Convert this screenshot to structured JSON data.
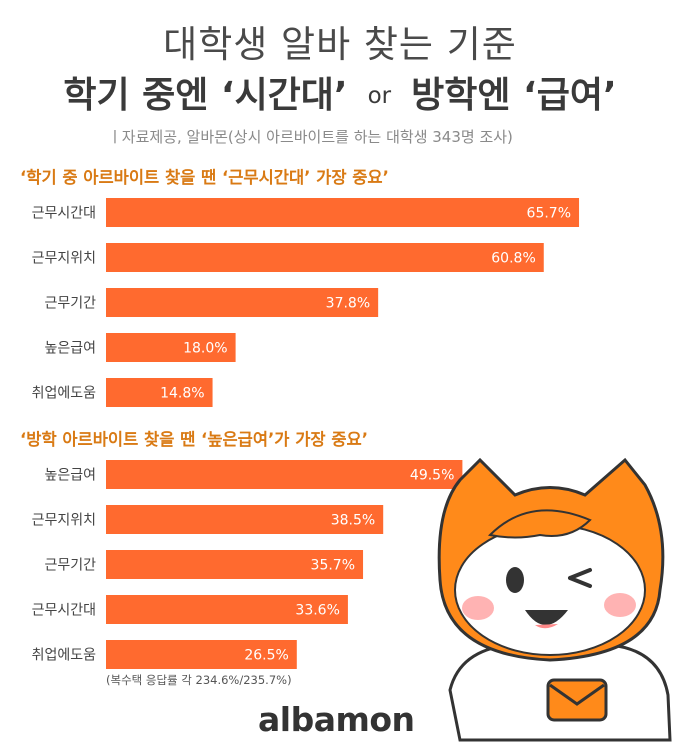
{
  "header": {
    "title_line1": "대학생 알바 찾는 기준",
    "title_line2_left": "학기 중엔 ‘시간대’",
    "title_line2_or": "or",
    "title_line2_right": "방학엔 ‘급여’",
    "source": "ㅣ자료제공, 알바몬(상시 아르바이트를 하는 대학생 343명 조사)"
  },
  "chart_data": [
    {
      "type": "bar",
      "orientation": "horizontal",
      "title": "‘학기 중 아르바이트 찾을 땐 ‘근무시간대’ 가장 중요’",
      "categories": [
        "근무시간대",
        "근무지위치",
        "근무기간",
        "높은급여",
        "취업에도움"
      ],
      "values": [
        65.7,
        60.8,
        37.8,
        18.0,
        14.8
      ],
      "value_labels": [
        "65.7%",
        "60.8%",
        "37.8%",
        "18.0%",
        "14.8%"
      ],
      "unit": "%",
      "color": "#ff6a2f",
      "grid": false
    },
    {
      "type": "bar",
      "orientation": "horizontal",
      "title": "‘방학 아르바이트 찾을 땐 ‘높은급여’가 가장 중요’",
      "categories": [
        "높은급여",
        "근무지위치",
        "근무기간",
        "근무시간대",
        "취업에도움"
      ],
      "values": [
        49.5,
        38.5,
        35.7,
        33.6,
        26.5
      ],
      "value_labels": [
        "49.5%",
        "38.5%",
        "35.7%",
        "33.6%",
        "26.5%"
      ],
      "unit": "%",
      "color": "#ff6a2f",
      "grid": false
    }
  ],
  "footnote": "(복수택 응답률 각 234.6%/235.7%)",
  "brand": {
    "logo_text": "albamon",
    "accent": "#ff7a00"
  }
}
